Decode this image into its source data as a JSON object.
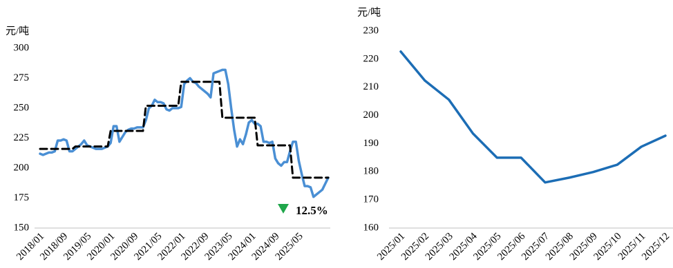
{
  "chart_data": [
    {
      "type": "line",
      "y_label": "元/吨",
      "annotation": "12.5%",
      "categories": [
        "2018/01",
        null,
        null,
        null,
        null,
        null,
        null,
        null,
        "2018/09",
        null,
        null,
        null,
        null,
        null,
        null,
        null,
        "2019/05",
        null,
        null,
        null,
        null,
        null,
        null,
        null,
        "2020/01",
        null,
        null,
        null,
        null,
        null,
        null,
        null,
        "2020/09",
        null,
        null,
        null,
        null,
        null,
        null,
        null,
        "2021/05",
        null,
        null,
        null,
        null,
        null,
        null,
        null,
        "2022/01",
        null,
        null,
        null,
        null,
        null,
        null,
        null,
        "2022/09",
        null,
        null,
        null,
        null,
        null,
        null,
        null,
        "2023/05",
        null,
        null,
        null,
        null,
        null,
        null,
        null,
        "2024/01",
        null,
        null,
        null,
        null,
        null,
        null,
        null,
        "2024/09",
        null,
        null,
        null,
        null,
        null,
        null,
        null,
        "2025/05",
        null,
        null,
        null,
        null,
        null,
        null,
        null,
        null,
        null,
        null
      ],
      "series": [
        {
          "color": "#4a8fd4",
          "dashed": false,
          "values": [
            212,
            211,
            212,
            213,
            213,
            214,
            223,
            223,
            224,
            223,
            214,
            214,
            216,
            218,
            220,
            223,
            219,
            218,
            217,
            216,
            216,
            216,
            217,
            218,
            221,
            235,
            235,
            222,
            226,
            230,
            232,
            233,
            233,
            234,
            234,
            234,
            240,
            250,
            252,
            257,
            255,
            255,
            254,
            249,
            248,
            250,
            250,
            250,
            251,
            270,
            273,
            275,
            272,
            271,
            268,
            266,
            264,
            262,
            259,
            279,
            280,
            281,
            282,
            282,
            270,
            250,
            232,
            218,
            224,
            220,
            228,
            238,
            240,
            237,
            237,
            235,
            222,
            222,
            221,
            222,
            208,
            204,
            202,
            205,
            205,
            214,
            222,
            222,
            206,
            195,
            185,
            185,
            184,
            176,
            178,
            180,
            182,
            187,
            192
          ]
        },
        {
          "color": "#000000",
          "dashed": true,
          "values": [
            216,
            216,
            216,
            216,
            216,
            216,
            216,
            216,
            216,
            216,
            216,
            216,
            218,
            218,
            218,
            218,
            218,
            218,
            218,
            218,
            218,
            218,
            218,
            218,
            231,
            231,
            231,
            231,
            231,
            231,
            231,
            231,
            231,
            231,
            231,
            231,
            252,
            252,
            252,
            252,
            252,
            252,
            252,
            252,
            252,
            252,
            252,
            252,
            272,
            272,
            272,
            272,
            272,
            272,
            272,
            272,
            272,
            272,
            272,
            272,
            272,
            272,
            242,
            242,
            242,
            242,
            242,
            242,
            242,
            242,
            242,
            242,
            242,
            242,
            219,
            219,
            219,
            219,
            219,
            219,
            219,
            219,
            219,
            219,
            219,
            219,
            192,
            192,
            192,
            192,
            192,
            192,
            192,
            192,
            192,
            192,
            192,
            192,
            192
          ]
        }
      ],
      "ylim": [
        150,
        300
      ],
      "yticks": [
        150,
        175,
        200,
        225,
        250,
        275,
        300
      ]
    },
    {
      "type": "line",
      "y_label": "元/吨",
      "categories": [
        "2025/01",
        "2025/02",
        "2025/03",
        "2025/04",
        "2025/05",
        "2025/06",
        "2025/07",
        "2025/08",
        "2025/09",
        "2025/10",
        "2025/11",
        "2025/12"
      ],
      "series": [
        {
          "color": "#1c6db5",
          "dashed": false,
          "values": [
            222.7,
            212.4,
            205.6,
            193.6,
            185,
            185,
            176.2,
            177.9,
            179.9,
            182.5,
            188.9,
            192.8
          ]
        }
      ],
      "ylim": [
        160,
        230
      ],
      "yticks": [
        160,
        170,
        180,
        190,
        200,
        210,
        220,
        230
      ]
    }
  ]
}
